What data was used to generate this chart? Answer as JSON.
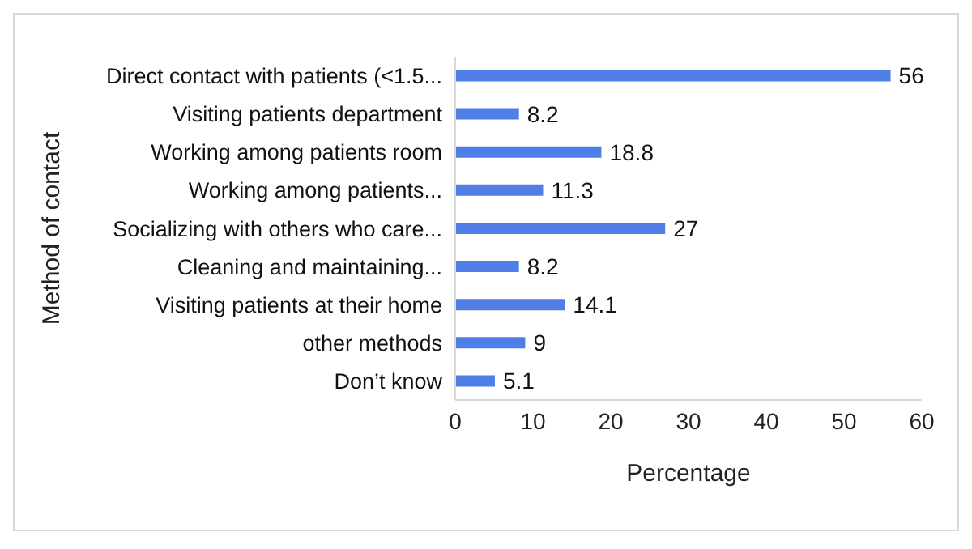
{
  "chart_data": {
    "type": "bar",
    "orientation": "horizontal",
    "xlabel": "Percentage",
    "ylabel": "Method of contact",
    "categories": [
      "Direct contact with patients (<1.5...",
      "Visiting patients department",
      "Working among patients room",
      "Working among patients...",
      "Socializing with others who care...",
      "Cleaning and maintaining...",
      "Visiting patients at their home",
      "other methods",
      "Don’t know"
    ],
    "values": [
      56,
      8.2,
      18.8,
      11.3,
      27,
      8.2,
      14.1,
      9,
      5.1
    ],
    "color": "#4f7fe6",
    "xlim": [
      0,
      60
    ],
    "xticks": [
      0,
      10,
      20,
      30,
      40,
      50,
      60
    ],
    "data_labels": true,
    "grid": false,
    "legend": false
  }
}
